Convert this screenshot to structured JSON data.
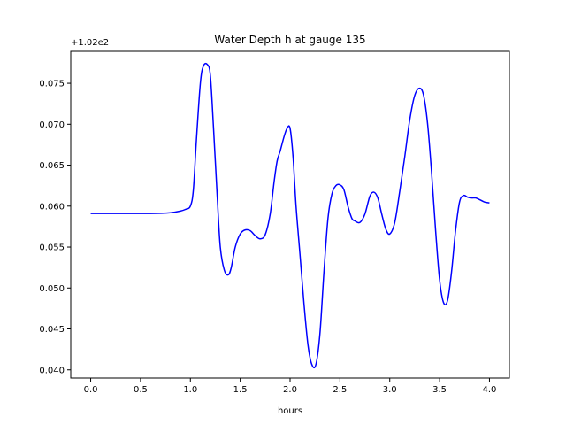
{
  "chart_data": {
    "type": "line",
    "title": "Water Depth h at gauge 135",
    "xlabel": "hours",
    "ylabel": "",
    "offset_text": "+1.02e2",
    "xlim": [
      -0.2,
      4.2
    ],
    "ylim": [
      0.039,
      0.0789
    ],
    "xticks": [
      0.0,
      0.5,
      1.0,
      1.5,
      2.0,
      2.5,
      3.0,
      3.5,
      4.0
    ],
    "xtick_labels": [
      "0.0",
      "0.5",
      "1.0",
      "1.5",
      "2.0",
      "2.5",
      "3.0",
      "3.5",
      "4.0"
    ],
    "yticks": [
      0.04,
      0.045,
      0.05,
      0.055,
      0.06,
      0.065,
      0.07,
      0.075
    ],
    "ytick_labels": [
      "0.040",
      "0.045",
      "0.050",
      "0.055",
      "0.060",
      "0.065",
      "0.070",
      "0.075"
    ],
    "grid": false,
    "series": [
      {
        "color": "#0000ff",
        "x": [
          0.0,
          0.3,
          0.6,
          0.8,
          0.9,
          0.95,
          1.0,
          1.03,
          1.06,
          1.1,
          1.13,
          1.17,
          1.2,
          1.23,
          1.27,
          1.3,
          1.34,
          1.38,
          1.41,
          1.45,
          1.5,
          1.55,
          1.6,
          1.65,
          1.7,
          1.75,
          1.8,
          1.84,
          1.87,
          1.9,
          1.94,
          1.97,
          2.0,
          2.03,
          2.06,
          2.1,
          2.14,
          2.18,
          2.22,
          2.26,
          2.3,
          2.34,
          2.38,
          2.42,
          2.46,
          2.5,
          2.54,
          2.58,
          2.62,
          2.65,
          2.7,
          2.75,
          2.8,
          2.84,
          2.88,
          2.92,
          2.96,
          3.0,
          3.05,
          3.1,
          3.15,
          3.2,
          3.25,
          3.3,
          3.34,
          3.38,
          3.42,
          3.46,
          3.5,
          3.54,
          3.58,
          3.62,
          3.66,
          3.7,
          3.74,
          3.78,
          3.82,
          3.86,
          3.9,
          3.95,
          4.0
        ],
        "y": [
          0.0591,
          0.0591,
          0.0591,
          0.0592,
          0.0594,
          0.0596,
          0.06,
          0.062,
          0.068,
          0.075,
          0.0771,
          0.0773,
          0.076,
          0.07,
          0.061,
          0.055,
          0.0522,
          0.0516,
          0.0525,
          0.055,
          0.0566,
          0.0571,
          0.057,
          0.0564,
          0.056,
          0.0565,
          0.059,
          0.063,
          0.0655,
          0.0667,
          0.0685,
          0.0695,
          0.0695,
          0.066,
          0.06,
          0.054,
          0.048,
          0.043,
          0.0406,
          0.0407,
          0.0445,
          0.052,
          0.0585,
          0.0615,
          0.0625,
          0.0626,
          0.062,
          0.06,
          0.0585,
          0.0582,
          0.058,
          0.059,
          0.0612,
          0.0617,
          0.061,
          0.059,
          0.0572,
          0.0566,
          0.058,
          0.0618,
          0.066,
          0.0705,
          0.0735,
          0.0744,
          0.0735,
          0.07,
          0.064,
          0.057,
          0.051,
          0.0482,
          0.0485,
          0.052,
          0.057,
          0.0605,
          0.0613,
          0.0611,
          0.061,
          0.061,
          0.0608,
          0.0605,
          0.0604
        ]
      }
    ]
  }
}
